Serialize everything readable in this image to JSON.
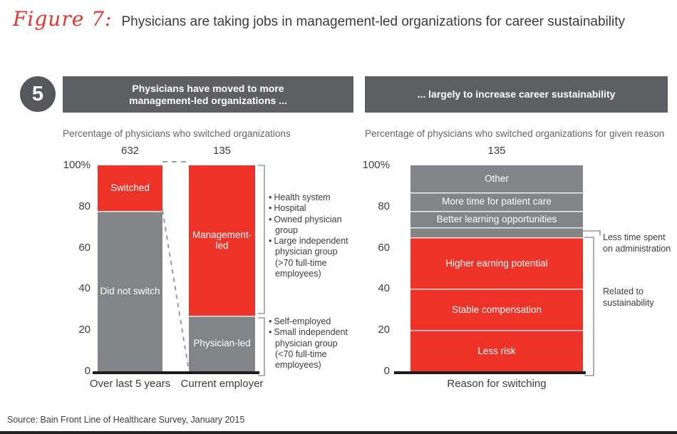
{
  "figure": {
    "label": "Figure 7:",
    "title": "Physicians are taking jobs in management-led organizations for career sustainability"
  },
  "badge": "5",
  "panels": {
    "left": {
      "header_line1": "Physicians have moved to more",
      "header_line2": "management-led organizations ...",
      "subtitle": "Percentage of physicians who switched organizations"
    },
    "right": {
      "header": "... largely to increase career sustainability",
      "subtitle": "Percentage of physicians who switched organizations for given reason"
    }
  },
  "colors": {
    "red": "#ee3227",
    "gray": "#828487",
    "dark_gray": "#56575a",
    "header_gray": "#5e5f62",
    "axis_black": "#1f1c1d",
    "line_gray": "#909295"
  },
  "chart_data": [
    {
      "type": "bar",
      "stacked": true,
      "title": "Percentage of physicians who switched organizations",
      "categories": [
        "Over last 5 years",
        "Current employer"
      ],
      "bar_counts": [
        "632",
        "135"
      ],
      "ylim": [
        0,
        100
      ],
      "yticks": [
        {
          "label": "100%",
          "value": 100
        },
        {
          "label": "80",
          "value": 80
        },
        {
          "label": "60",
          "value": 60
        },
        {
          "label": "40",
          "value": 40
        },
        {
          "label": "20",
          "value": 20
        },
        {
          "label": "0",
          "value": 0
        }
      ],
      "bars": [
        {
          "category": "Over last 5 years",
          "count": "632",
          "segments": [
            {
              "label": "Did not switch",
              "value": 78,
              "color": "gray"
            },
            {
              "label": "Switched",
              "value": 22,
              "color": "red"
            }
          ]
        },
        {
          "category": "Current employer",
          "count": "135",
          "segments": [
            {
              "label": "Physician-led",
              "value": 27,
              "color": "gray"
            },
            {
              "label": "Management-led",
              "value": 73,
              "color": "red"
            }
          ]
        }
      ],
      "annotations": {
        "management_led_types": [
          "Health system",
          "Hospital",
          "Owned physician group",
          "Large independent physician group (>70 full-time employees)"
        ],
        "physician_led_types": [
          "Self-employed",
          "Small independent physician group (<70 full-time employees)"
        ]
      }
    },
    {
      "type": "bar",
      "stacked": true,
      "title": "Percentage of physicians who switched organizations for given reason",
      "categories": [
        "Reason for switching"
      ],
      "ylim": [
        0,
        100
      ],
      "yticks": [
        {
          "label": "100%",
          "value": 100
        },
        {
          "label": "80",
          "value": 80
        },
        {
          "label": "60",
          "value": 60
        },
        {
          "label": "40",
          "value": 40
        },
        {
          "label": "20",
          "value": 20
        },
        {
          "label": "0",
          "value": 0
        }
      ],
      "bars": [
        {
          "category": "Reason for switching",
          "count": "135",
          "segments": [
            {
              "label": "Less risk",
              "value": 20,
              "color": "red"
            },
            {
              "label": "Stable compensation",
              "value": 20,
              "color": "red"
            },
            {
              "label": "Higher earning potential",
              "value": 25,
              "color": "red"
            },
            {
              "label": "Less time spent on administration",
              "value": 5,
              "color": "gray",
              "label_outside": true
            },
            {
              "label": "Better learning opportunities",
              "value": 8,
              "color": "gray"
            },
            {
              "label": "More time for patient care",
              "value": 9,
              "color": "gray"
            },
            {
              "label": "Other",
              "value": 13,
              "color": "gray"
            }
          ]
        }
      ],
      "annotations": {
        "callout": "Less time spent on administration",
        "bracket_label": "Related to sustainability"
      }
    }
  ],
  "source": "Source: Bain Front Line of Healthcare Survey, January 2015"
}
